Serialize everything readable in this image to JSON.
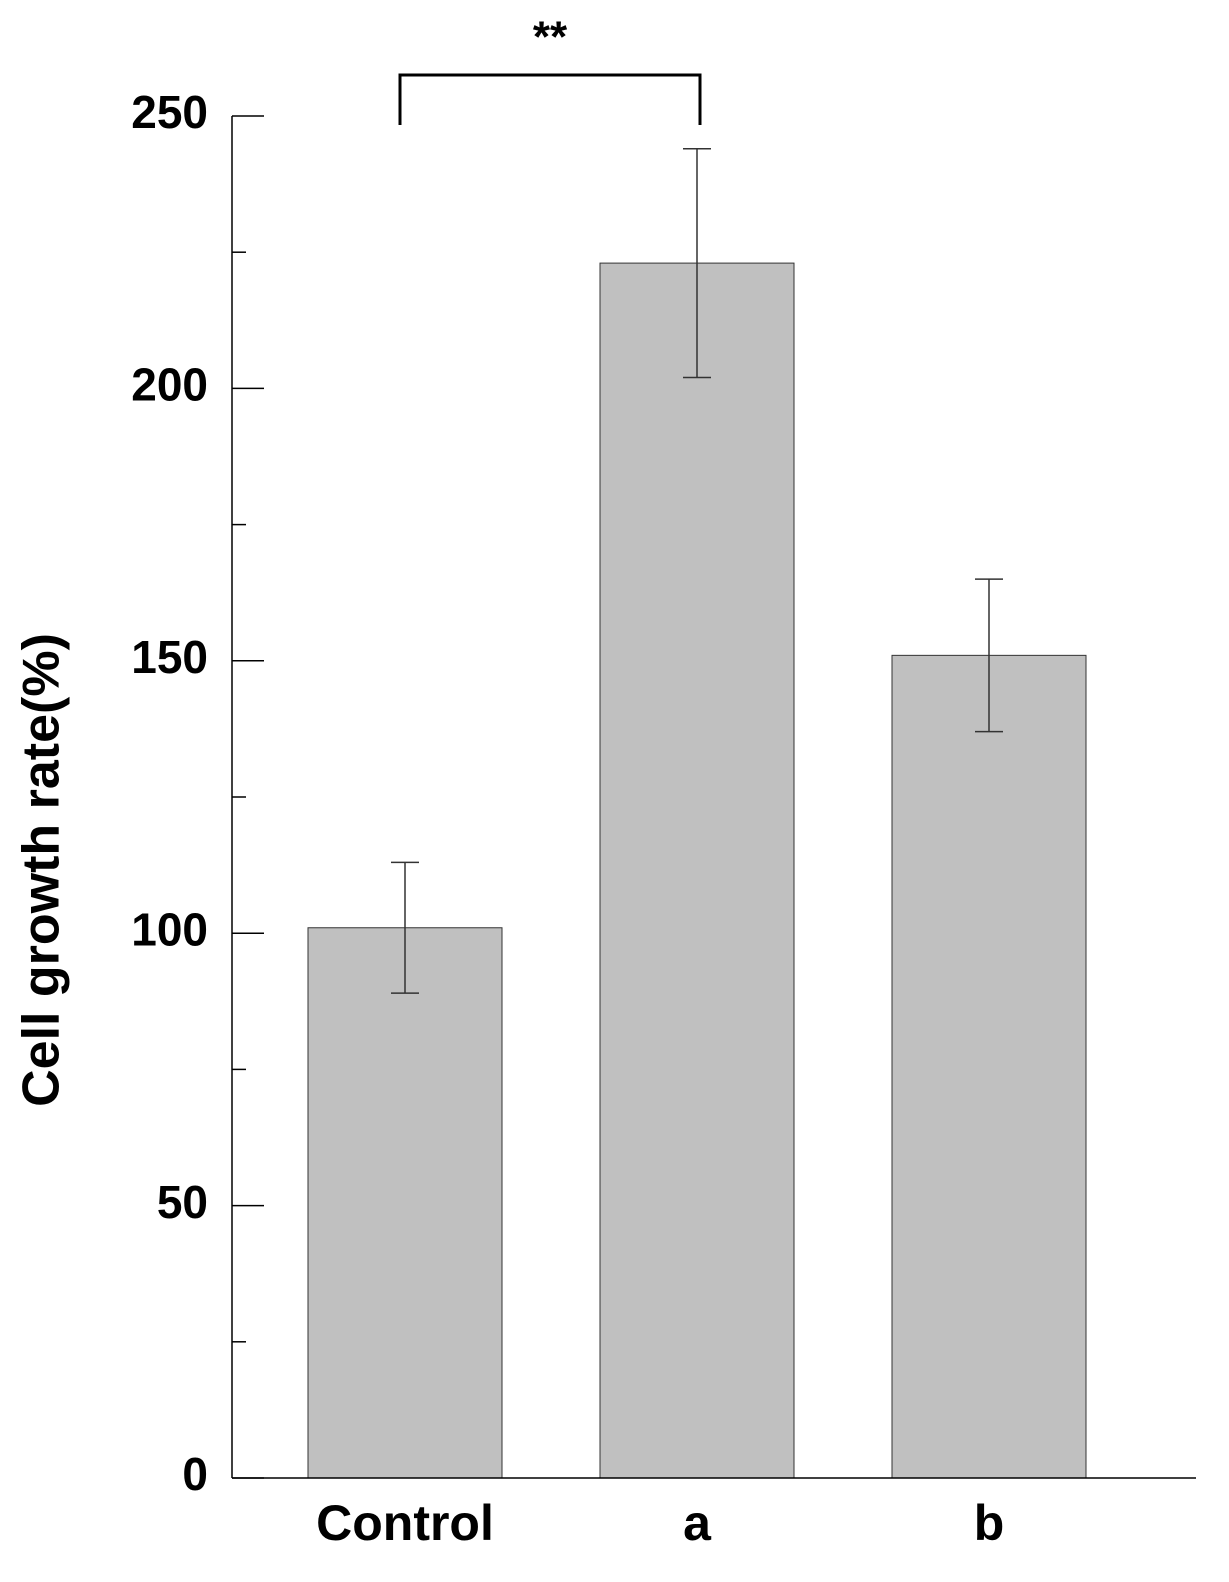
{
  "chart_data": {
    "type": "bar",
    "y_label": "Cell growth rate(%)",
    "categories": [
      "Control",
      "a",
      "b"
    ],
    "values": [
      101,
      223,
      151
    ],
    "errors": [
      12,
      21,
      14
    ],
    "color": "#c0c0c0",
    "ylim": [
      0,
      250
    ],
    "yticks": [
      0,
      50,
      100,
      150,
      200,
      250
    ],
    "minor_yticks": [
      25,
      75,
      125,
      175,
      225
    ],
    "significance": {
      "label": "**",
      "categories": [
        0,
        1
      ]
    }
  }
}
